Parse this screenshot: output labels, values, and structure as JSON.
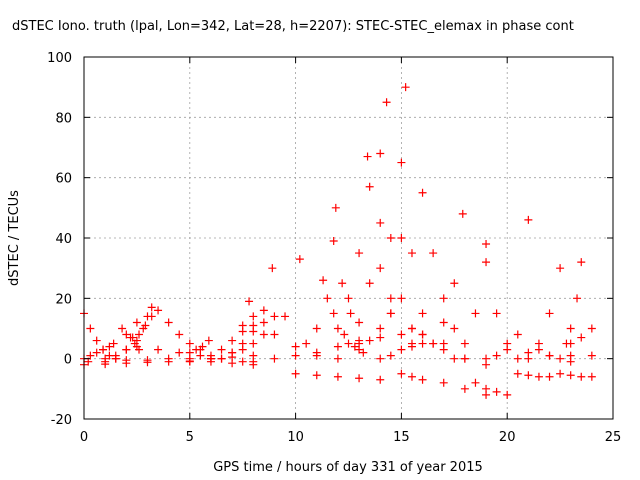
{
  "chart_data": {
    "type": "scatter",
    "title": "dSTEC Iono. truth (lpal, Lon=342, Lat=28, h=2207): STEC-STEC_elemax in phase cont",
    "xlabel": "GPS time / hours of day 331 of year 2015",
    "ylabel": "dSTEC  / TECUs",
    "xlim": [
      0,
      25
    ],
    "ylim": [
      -20,
      100
    ],
    "xticks": [
      "0",
      "5",
      "10",
      "15",
      "20",
      "25"
    ],
    "yticks": [
      "-20",
      "0",
      "20",
      "40",
      "60",
      "80",
      "100"
    ],
    "grid": true,
    "legend": "none",
    "marker": "+",
    "color": "#ff0000",
    "series": [
      {
        "x": [
          0.0,
          0.3,
          0.6,
          0.9,
          1.2,
          1.5
        ],
        "y": [
          15,
          10,
          6,
          3,
          1,
          0
        ]
      },
      {
        "x": [
          0.0,
          0.3,
          0.6,
          0.9,
          1.2,
          1.4
        ],
        "y": [
          0,
          1,
          2,
          3,
          4,
          5
        ]
      },
      {
        "x": [
          0.0,
          1.0,
          2.0,
          3.0,
          4.0,
          5.0,
          6.0,
          7.0,
          8.0
        ],
        "y": [
          -2,
          -1.8,
          -1.5,
          -1.2,
          -1,
          -0.8,
          -1,
          -1.5,
          -2
        ]
      },
      {
        "x": [
          0.2,
          1.0,
          2.0,
          3.0,
          4.0,
          5.0,
          6.0,
          7.0,
          8.0
        ],
        "y": [
          -1,
          -1,
          -0.5,
          -0.5,
          0,
          0,
          0,
          0.5,
          1
        ]
      },
      {
        "x": [
          1.0,
          1.5,
          2.0,
          2.5,
          2.8,
          3.0,
          3.2
        ],
        "y": [
          0,
          1,
          3,
          6,
          10,
          14,
          17
        ]
      },
      {
        "x": [
          1.5,
          2.0,
          2.3,
          2.5
        ],
        "y": [
          0,
          3,
          7,
          12
        ]
      },
      {
        "x": [
          1.8,
          2.0,
          2.2,
          2.4,
          2.6
        ],
        "y": [
          10,
          8,
          7,
          5,
          3
        ]
      },
      {
        "x": [
          2.6,
          2.9,
          3.2,
          3.5
        ],
        "y": [
          8,
          11,
          14,
          16
        ]
      },
      {
        "x": [
          2.5,
          3.5,
          4.5,
          5.5,
          6.5,
          7.5
        ],
        "y": [
          4,
          3,
          2,
          1,
          0,
          -1
        ]
      },
      {
        "x": [
          4.0,
          4.5,
          5.0,
          5.5,
          6.0,
          6.5
        ],
        "y": [
          12,
          8,
          5,
          3,
          1,
          0
        ]
      },
      {
        "x": [
          5.0,
          5.3,
          5.6,
          5.9
        ],
        "y": [
          2,
          3,
          4,
          6
        ]
      },
      {
        "x": [
          5.0,
          6.0,
          7.0,
          8.0
        ],
        "y": [
          -1,
          0,
          2,
          5
        ]
      },
      {
        "x": [
          6.0,
          6.5,
          7.0,
          7.5,
          7.8
        ],
        "y": [
          0,
          3,
          6,
          11,
          19
        ]
      },
      {
        "x": [
          7.0,
          7.5,
          8.0,
          8.5,
          8.9
        ],
        "y": [
          2,
          5,
          9,
          16,
          30
        ]
      },
      {
        "x": [
          7.5,
          8.5,
          9.5,
          10.2
        ],
        "y": [
          3,
          8,
          14,
          33
        ]
      },
      {
        "x": [
          7.5,
          8.0,
          8.5,
          9.0
        ],
        "y": [
          9,
          11,
          12,
          14
        ]
      },
      {
        "x": [
          8.0,
          9.0,
          10.0,
          11.0,
          12.0
        ],
        "y": [
          14,
          8,
          4,
          1,
          0
        ]
      },
      {
        "x": [
          8.0,
          9.0,
          10.0,
          11.0,
          12.0,
          13.0
        ],
        "y": [
          -1,
          0,
          1,
          2,
          4,
          5
        ]
      },
      {
        "x": [
          10.0,
          11.0,
          12.0,
          13.0,
          14.0
        ],
        "y": [
          -5,
          -5.5,
          -6,
          -6.5,
          -7
        ]
      },
      {
        "x": [
          10.5,
          11.0,
          11.5,
          11.9
        ],
        "y": [
          5,
          10,
          20,
          50
        ]
      },
      {
        "x": [
          11.3,
          11.8,
          12.3,
          12.8,
          13.2
        ],
        "y": [
          26,
          15,
          8,
          4,
          2
        ]
      },
      {
        "x": [
          11.8,
          12.2,
          12.6,
          13.0
        ],
        "y": [
          39,
          25,
          15,
          6
        ]
      },
      {
        "x": [
          12.0,
          12.5,
          13.0,
          13.4
        ],
        "y": [
          10,
          20,
          35,
          67
        ]
      },
      {
        "x": [
          12.5,
          13.0,
          13.5,
          14.0,
          14.3
        ],
        "y": [
          5,
          12,
          25,
          45,
          85
        ]
      },
      {
        "x": [
          13.0,
          13.5,
          14.0,
          14.5
        ],
        "y": [
          3,
          6,
          10,
          15
        ]
      },
      {
        "x": [
          13.5,
          14.0,
          14.5,
          15.0,
          15.5
        ],
        "y": [
          57,
          30,
          15,
          8,
          4
        ]
      },
      {
        "x": [
          14.0,
          14.5,
          15.0,
          15.5,
          16.0
        ],
        "y": [
          68,
          40,
          20,
          10,
          5
        ]
      },
      {
        "x": [
          14.0,
          14.5,
          15.0,
          15.5,
          16.0
        ],
        "y": [
          0,
          1,
          3,
          5,
          8
        ]
      },
      {
        "x": [
          14.0,
          14.5,
          15.0,
          15.2
        ],
        "y": [
          7,
          20,
          40,
          90
        ]
      },
      {
        "x": [
          15.0,
          15.5,
          16.0,
          17.0,
          18.0
        ],
        "y": [
          65,
          35,
          15,
          5,
          0
        ]
      },
      {
        "x": [
          15.0,
          15.5,
          16.0,
          17.0,
          18.0,
          19.0
        ],
        "y": [
          -5,
          -6,
          -7,
          -8,
          -10,
          -12
        ]
      },
      {
        "x": [
          15.5,
          16.0,
          16.5,
          17.0,
          18.0,
          19.0
        ],
        "y": [
          10,
          8,
          5,
          3,
          0,
          -2
        ]
      },
      {
        "x": [
          16.0,
          16.5,
          17.0,
          17.5
        ],
        "y": [
          55,
          35,
          20,
          10
        ]
      },
      {
        "x": [
          16.5,
          17.0,
          17.5,
          17.9
        ],
        "y": [
          5,
          12,
          25,
          48
        ]
      },
      {
        "x": [
          17.5,
          18.0,
          18.5,
          19.0
        ],
        "y": [
          0,
          5,
          15,
          38
        ]
      },
      {
        "x": [
          18.5,
          19.0,
          19.5,
          20.0
        ],
        "y": [
          -8,
          -10,
          -11,
          -12
        ]
      },
      {
        "x": [
          19.0,
          19.5,
          20.0,
          20.5
        ],
        "y": [
          32,
          15,
          5,
          0
        ]
      },
      {
        "x": [
          19.0,
          19.5,
          20.0,
          20.5,
          21.0
        ],
        "y": [
          0,
          1,
          3,
          8,
          46
        ]
      },
      {
        "x": [
          20.5,
          21.0,
          21.5,
          22.0
        ],
        "y": [
          -5,
          -5.5,
          -6,
          -6
        ]
      },
      {
        "x": [
          21.0,
          21.5,
          22.0,
          22.5
        ],
        "y": [
          0,
          5,
          15,
          30
        ]
      },
      {
        "x": [
          21.5,
          22.0,
          22.5,
          23.0
        ],
        "y": [
          3,
          1,
          0,
          -1
        ]
      },
      {
        "x": [
          22.5,
          23.0,
          23.5,
          24.0
        ],
        "y": [
          -5,
          -5.5,
          -6,
          -6
        ]
      },
      {
        "x": [
          22.8,
          23.0,
          23.3,
          23.5
        ],
        "y": [
          5,
          10,
          20,
          32
        ]
      },
      {
        "x": [
          23.0,
          23.5,
          24.0
        ],
        "y": [
          5,
          7,
          10
        ]
      },
      {
        "x": [
          21.0,
          22.0,
          23.0,
          24.0
        ],
        "y": [
          2,
          1,
          1,
          1
        ]
      }
    ]
  }
}
